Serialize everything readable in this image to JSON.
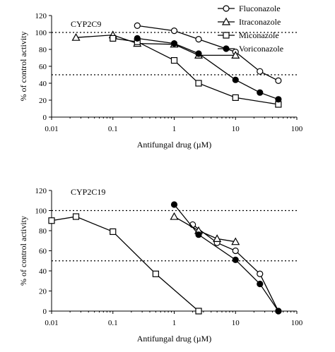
{
  "chart_data": [
    {
      "type": "line",
      "title": "CYP2C9",
      "xlabel": "Antifungal drug (µM)",
      "ylabel": "% of control activity",
      "xscale": "log",
      "xlim": [
        0.01,
        100
      ],
      "ylim": [
        0,
        120
      ],
      "xticks": [
        "0.01",
        "0.1",
        "1",
        "10",
        "100"
      ],
      "yticks": [
        "0",
        "20",
        "40",
        "60",
        "80",
        "100",
        "120"
      ],
      "reference_lines": [
        100,
        50
      ],
      "grid": false,
      "legend": "top-right",
      "series": [
        {
          "name": "Fluconazole",
          "marker": "open-circle",
          "x": [
            0.25,
            1,
            2.5,
            10,
            25,
            50
          ],
          "y": [
            108,
            102,
            92,
            77,
            54,
            43
          ]
        },
        {
          "name": "Itraconazole",
          "marker": "open-triangle",
          "x": [
            0.025,
            0.1,
            0.25,
            1,
            2.5,
            10
          ],
          "y": [
            94,
            97,
            87,
            86,
            73,
            73
          ]
        },
        {
          "name": "Miconazole",
          "marker": "open-square",
          "x": [
            0.1,
            0.25,
            1,
            2.5,
            10,
            50
          ],
          "y": [
            93,
            89,
            67,
            40,
            23,
            15
          ]
        },
        {
          "name": "Voriconazole",
          "marker": "filled-circle",
          "x": [
            0.25,
            1,
            2.5,
            10,
            25,
            50
          ],
          "y": [
            93,
            87,
            75,
            44,
            29,
            21
          ]
        }
      ]
    },
    {
      "type": "line",
      "title": "CYP2C19",
      "xlabel": "Antifungal drug (µM)",
      "ylabel": "% of control activity",
      "xscale": "log",
      "xlim": [
        0.01,
        100
      ],
      "ylim": [
        0,
        120
      ],
      "xticks": [
        "0.01",
        "0.1",
        "1",
        "10",
        "100"
      ],
      "yticks": [
        "0",
        "20",
        "40",
        "60",
        "80",
        "100",
        "120"
      ],
      "reference_lines": [
        100,
        50
      ],
      "grid": false,
      "series": [
        {
          "name": "Fluconazole",
          "marker": "open-circle",
          "x": [
            2,
            5,
            10,
            25,
            50
          ],
          "y": [
            86,
            68,
            60,
            37,
            0
          ]
        },
        {
          "name": "Itraconazole",
          "marker": "open-triangle",
          "x": [
            1,
            2.5,
            5,
            10
          ],
          "y": [
            94,
            80,
            72,
            69
          ]
        },
        {
          "name": "Miconazole",
          "marker": "open-square",
          "x": [
            0.01,
            0.025,
            0.1,
            0.5,
            2.5
          ],
          "y": [
            90,
            94,
            79,
            37,
            0
          ]
        },
        {
          "name": "Voriconazole",
          "marker": "filled-circle",
          "x": [
            1,
            2.5,
            10,
            25,
            50
          ],
          "y": [
            106,
            76,
            51,
            27,
            0
          ]
        }
      ]
    }
  ]
}
